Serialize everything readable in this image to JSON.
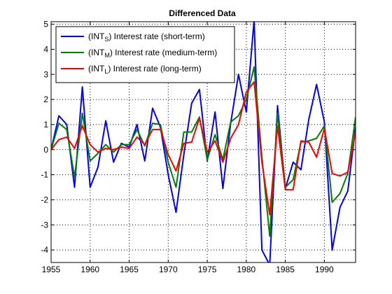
{
  "chart_data": {
    "type": "line",
    "title": "Differenced Data",
    "xlabel": "",
    "ylabel": "",
    "xlim": [
      1955,
      1994
    ],
    "ylim": [
      -4.5,
      5.1
    ],
    "xticks": [
      1955,
      1960,
      1965,
      1970,
      1975,
      1980,
      1985,
      1990
    ],
    "yticks": [
      -4,
      -3,
      -2,
      -1,
      0,
      1,
      2,
      3,
      4,
      5
    ],
    "grid": true,
    "grid_style": "dotted",
    "legend_position": "top-left",
    "x": [
      1955,
      1956,
      1957,
      1958,
      1959,
      1960,
      1961,
      1962,
      1963,
      1964,
      1965,
      1966,
      1967,
      1968,
      1969,
      1970,
      1971,
      1972,
      1973,
      1974,
      1975,
      1976,
      1977,
      1978,
      1979,
      1980,
      1981,
      1982,
      1983,
      1984,
      1985,
      1986,
      1987,
      1988,
      1989,
      1990,
      1991,
      1992,
      1993,
      1994
    ],
    "series": [
      {
        "name": "(INT_S) Interest rate (short-term)",
        "legend_base": "INT",
        "legend_sub": "S",
        "legend_rest": "Interest rate (short-term)",
        "color": "#0000ff",
        "values": [
          0.0,
          1.35,
          1.0,
          -1.5,
          2.5,
          -1.5,
          -0.7,
          1.15,
          -0.5,
          0.25,
          0.1,
          1.0,
          -0.45,
          1.65,
          0.9,
          -1.0,
          -2.5,
          -0.2,
          1.85,
          2.4,
          -0.45,
          1.5,
          -1.55,
          1.05,
          3.0,
          1.5,
          5.15,
          -4.0,
          -4.6,
          1.75,
          -1.55,
          -0.5,
          -0.8,
          1.2,
          2.6,
          1.1,
          -4.0,
          -2.3,
          -1.65,
          0.9
        ]
      },
      {
        "name": "(INT_M) Interest rate (medium-term)",
        "legend_base": "INT",
        "legend_sub": "M",
        "legend_rest": "Interest rate (medium-term)",
        "color": "#008000",
        "values": [
          0.0,
          1.05,
          0.8,
          -1.1,
          1.45,
          -0.45,
          -0.15,
          0.2,
          -0.1,
          0.2,
          0.2,
          0.8,
          0.15,
          1.05,
          1.0,
          -0.5,
          -1.5,
          0.7,
          0.7,
          1.3,
          -0.4,
          0.6,
          -0.4,
          1.1,
          1.35,
          2.0,
          3.3,
          -0.3,
          -3.45,
          1.45,
          -1.5,
          -1.2,
          0.3,
          0.35,
          0.45,
          0.95,
          -2.1,
          -1.75,
          -0.95,
          1.3
        ]
      },
      {
        "name": "(INT_L) Interest rate (long-term)",
        "legend_base": "INT",
        "legend_sub": "L",
        "legend_rest": "Interest rate (long-term)",
        "color": "#ff0000",
        "values": [
          0.0,
          0.4,
          0.5,
          0.05,
          0.95,
          0.2,
          -0.1,
          0.05,
          0.0,
          0.1,
          0.05,
          0.5,
          0.2,
          0.8,
          0.8,
          -0.2,
          -0.85,
          0.25,
          0.3,
          1.25,
          -0.1,
          0.35,
          -0.5,
          0.45,
          1.0,
          2.3,
          2.7,
          -0.5,
          -2.6,
          0.95,
          -1.6,
          -1.6,
          0.35,
          0.3,
          -0.3,
          0.85,
          -0.95,
          -1.05,
          -0.9,
          0.7
        ]
      }
    ]
  }
}
